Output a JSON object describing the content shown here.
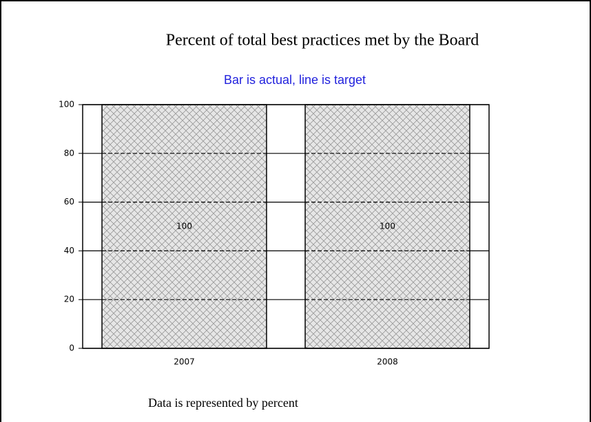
{
  "chart_data": {
    "type": "bar",
    "title": "Percent of total best practices met by the Board",
    "subtitle": "Bar is actual, line is target",
    "footnote": "Data is represented by percent",
    "categories": [
      "2007",
      "2008"
    ],
    "values": [
      100,
      100
    ],
    "color": "#d8d8d8",
    "ylim": [
      0,
      100
    ],
    "yticks": [
      0,
      20,
      40,
      60,
      80,
      100
    ],
    "grid": true
  }
}
